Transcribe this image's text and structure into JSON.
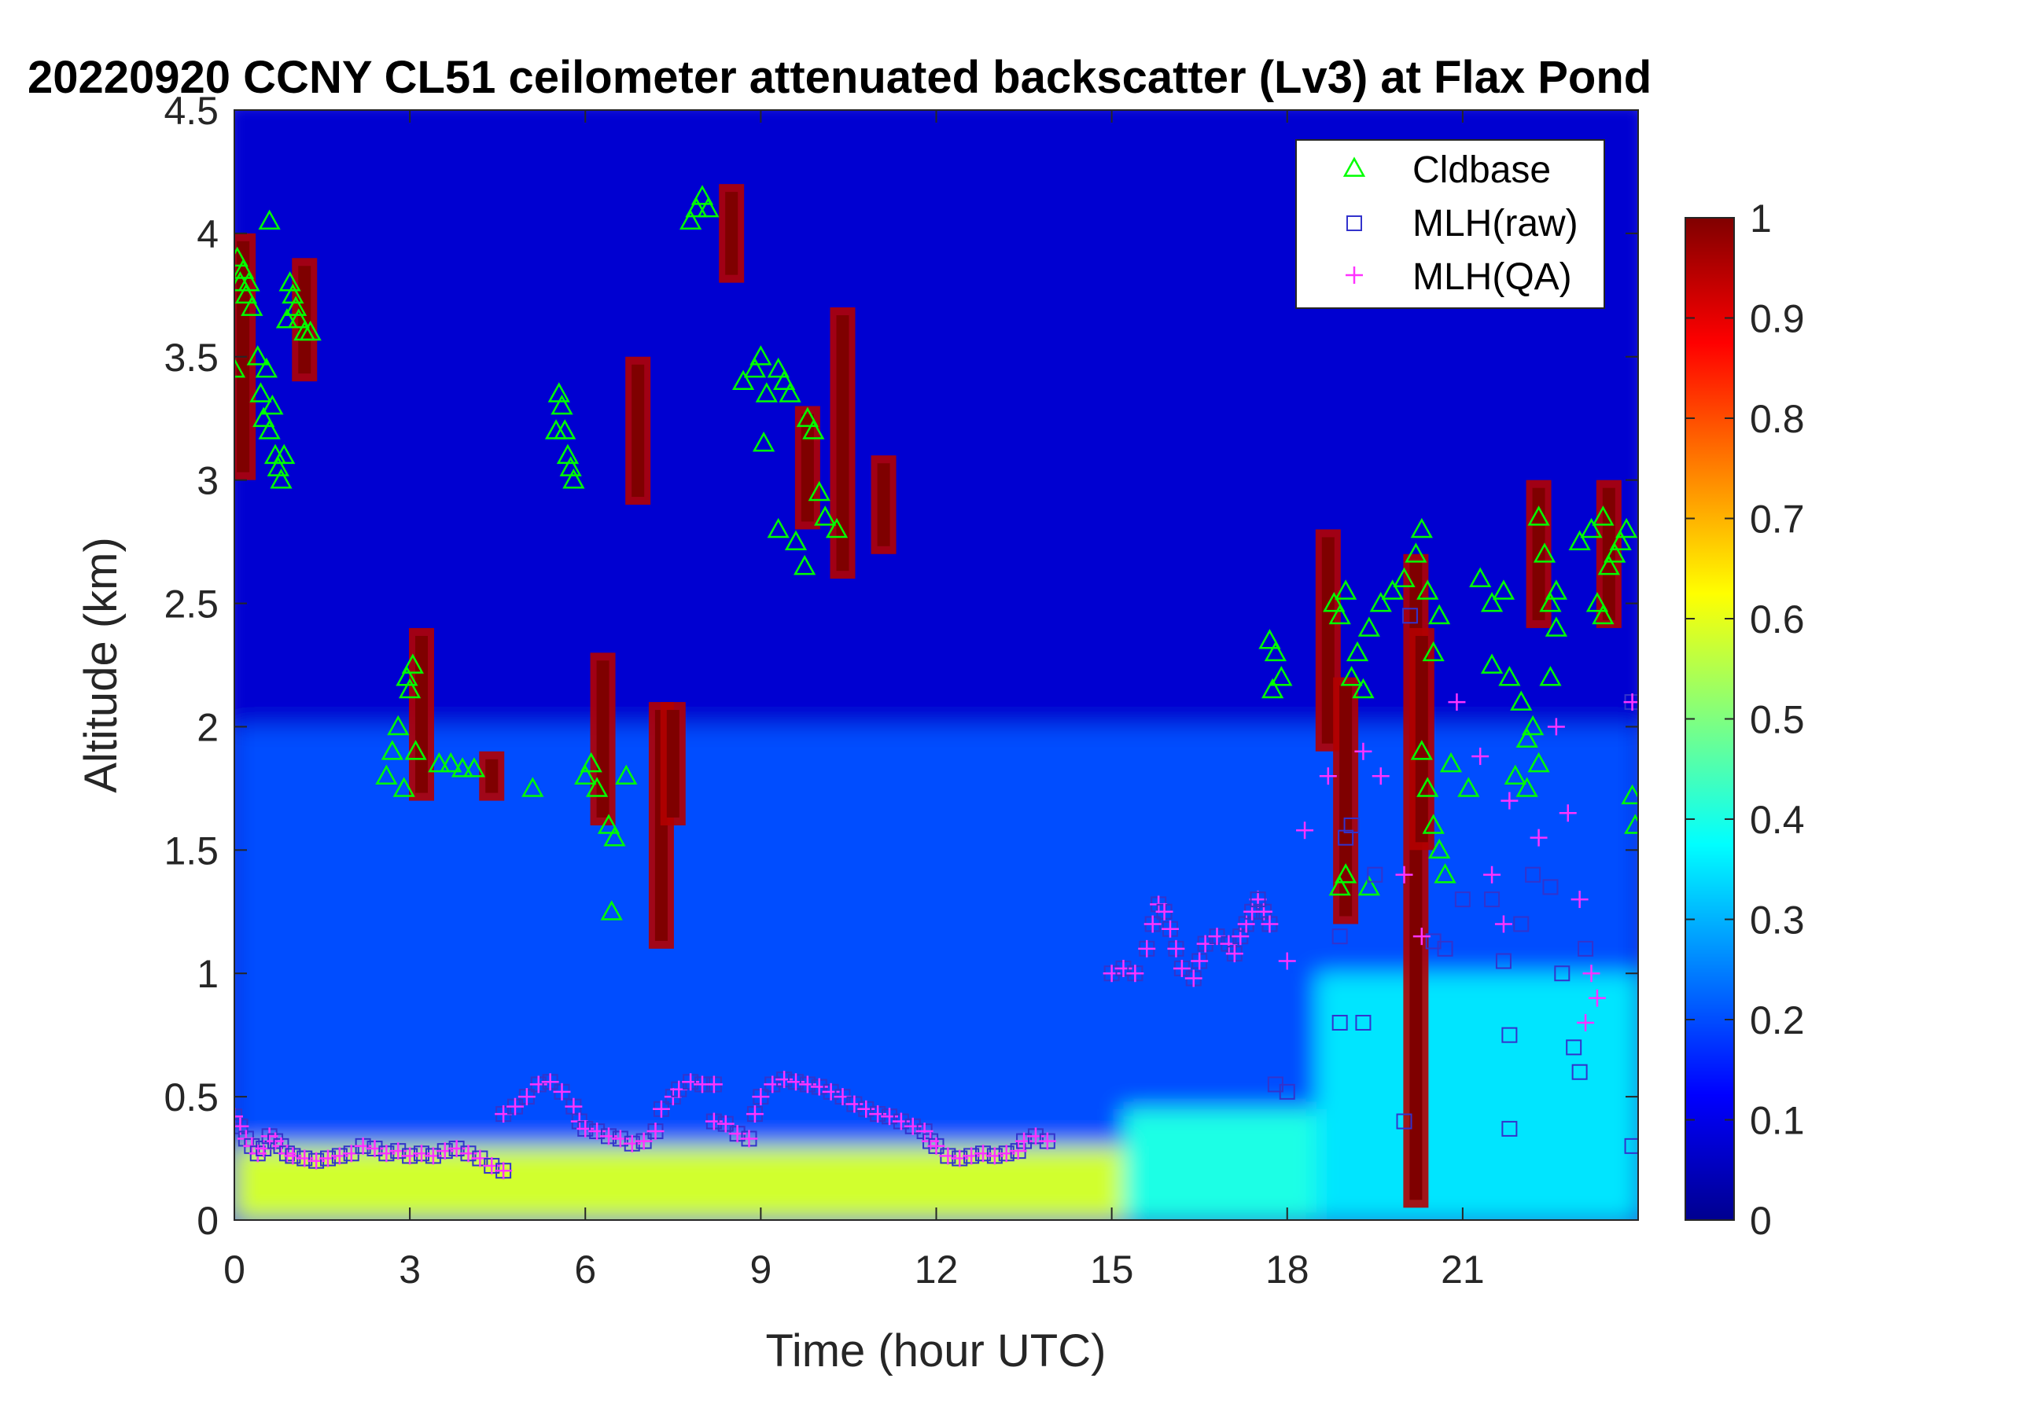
{
  "chart_data": {
    "type": "heatmap",
    "title": "20220920 CCNY CL51 ceilometer attenuated backscatter (Lv3) at Flax Pond",
    "xlabel": "Time (hour UTC)",
    "ylabel": "Altitude (km)",
    "xlim": [
      0,
      24
    ],
    "ylim": [
      0,
      4.5
    ],
    "x_ticks": [
      "0",
      "3",
      "6",
      "9",
      "12",
      "15",
      "18",
      "21"
    ],
    "x_tick_values": [
      0,
      3,
      6,
      9,
      12,
      15,
      18,
      21
    ],
    "y_ticks": [
      "0",
      "0.5",
      "1",
      "1.5",
      "2",
      "2.5",
      "3",
      "3.5",
      "4",
      "4.5"
    ],
    "y_tick_values": [
      0,
      0.5,
      1,
      1.5,
      2,
      2.5,
      3,
      3.5,
      4,
      4.5
    ],
    "colorbar": {
      "colormap": "jet",
      "range": [
        0,
        1
      ],
      "ticks": [
        "0",
        "0.1",
        "0.2",
        "0.3",
        "0.4",
        "0.5",
        "0.6",
        "0.7",
        "0.8",
        "0.9",
        "1"
      ],
      "tick_values": [
        0,
        0.1,
        0.2,
        0.3,
        0.4,
        0.5,
        0.6,
        0.7,
        0.8,
        0.9,
        1
      ]
    },
    "legend": {
      "position": "top-right",
      "entries": [
        {
          "label": "Cldbase",
          "marker": "triangle",
          "color": "#00ff00"
        },
        {
          "label": "MLH(raw)",
          "marker": "square",
          "color": "#3333cc"
        },
        {
          "label": "MLH(QA)",
          "marker": "plus",
          "color": "#ff33ff"
        }
      ]
    },
    "series": [
      {
        "name": "Cldbase",
        "points": [
          [
            0.0,
            3.45
          ],
          [
            0.05,
            3.9
          ],
          [
            0.1,
            3.8
          ],
          [
            0.15,
            3.85
          ],
          [
            0.2,
            3.75
          ],
          [
            0.25,
            3.8
          ],
          [
            0.3,
            3.7
          ],
          [
            0.4,
            3.5
          ],
          [
            0.45,
            3.35
          ],
          [
            0.5,
            3.25
          ],
          [
            0.55,
            3.45
          ],
          [
            0.6,
            3.2
          ],
          [
            0.65,
            3.3
          ],
          [
            0.7,
            3.1
          ],
          [
            0.75,
            3.05
          ],
          [
            0.8,
            3.0
          ],
          [
            0.85,
            3.1
          ],
          [
            0.6,
            4.05
          ],
          [
            0.9,
            3.65
          ],
          [
            0.95,
            3.8
          ],
          [
            1.0,
            3.75
          ],
          [
            1.05,
            3.7
          ],
          [
            1.1,
            3.65
          ],
          [
            1.2,
            3.6
          ],
          [
            1.3,
            3.6
          ],
          [
            2.6,
            1.8
          ],
          [
            2.7,
            1.9
          ],
          [
            2.8,
            2.0
          ],
          [
            2.9,
            1.75
          ],
          [
            2.95,
            2.2
          ],
          [
            3.0,
            2.15
          ],
          [
            3.05,
            2.25
          ],
          [
            3.1,
            1.9
          ],
          [
            3.5,
            1.85
          ],
          [
            3.7,
            1.85
          ],
          [
            3.9,
            1.83
          ],
          [
            4.1,
            1.83
          ],
          [
            5.1,
            1.75
          ],
          [
            6.0,
            1.8
          ],
          [
            6.1,
            1.85
          ],
          [
            6.2,
            1.75
          ],
          [
            6.4,
            1.6
          ],
          [
            6.5,
            1.55
          ],
          [
            6.45,
            1.25
          ],
          [
            6.7,
            1.8
          ],
          [
            5.5,
            3.2
          ],
          [
            5.55,
            3.35
          ],
          [
            5.6,
            3.3
          ],
          [
            5.65,
            3.2
          ],
          [
            5.7,
            3.1
          ],
          [
            5.75,
            3.05
          ],
          [
            5.8,
            3.0
          ],
          [
            7.8,
            4.05
          ],
          [
            7.9,
            4.1
          ],
          [
            8.0,
            4.15
          ],
          [
            8.1,
            4.1
          ],
          [
            8.7,
            3.4
          ],
          [
            8.9,
            3.45
          ],
          [
            9.0,
            3.5
          ],
          [
            9.1,
            3.35
          ],
          [
            9.3,
            3.45
          ],
          [
            9.4,
            3.4
          ],
          [
            9.5,
            3.35
          ],
          [
            9.05,
            3.15
          ],
          [
            9.3,
            2.8
          ],
          [
            9.6,
            2.75
          ],
          [
            9.8,
            3.25
          ],
          [
            9.9,
            3.2
          ],
          [
            10.0,
            2.95
          ],
          [
            10.1,
            2.85
          ],
          [
            9.75,
            2.65
          ],
          [
            10.3,
            2.8
          ],
          [
            17.7,
            2.35
          ],
          [
            17.8,
            2.3
          ],
          [
            17.9,
            2.2
          ],
          [
            17.75,
            2.15
          ],
          [
            18.8,
            2.5
          ],
          [
            18.9,
            2.45
          ],
          [
            19.0,
            2.55
          ],
          [
            19.1,
            2.2
          ],
          [
            19.2,
            2.3
          ],
          [
            19.3,
            2.15
          ],
          [
            19.4,
            2.4
          ],
          [
            18.9,
            1.35
          ],
          [
            19.0,
            1.4
          ],
          [
            19.4,
            1.35
          ],
          [
            19.6,
            2.5
          ],
          [
            19.8,
            2.55
          ],
          [
            20.0,
            2.6
          ],
          [
            20.2,
            2.7
          ],
          [
            20.3,
            2.8
          ],
          [
            20.4,
            2.55
          ],
          [
            20.5,
            2.3
          ],
          [
            20.6,
            2.45
          ],
          [
            20.3,
            1.9
          ],
          [
            20.4,
            1.75
          ],
          [
            20.5,
            1.6
          ],
          [
            20.6,
            1.5
          ],
          [
            20.7,
            1.4
          ],
          [
            20.8,
            1.85
          ],
          [
            21.1,
            1.75
          ],
          [
            21.3,
            2.6
          ],
          [
            21.5,
            2.5
          ],
          [
            21.7,
            2.55
          ],
          [
            21.5,
            2.25
          ],
          [
            21.8,
            2.2
          ],
          [
            22.0,
            2.1
          ],
          [
            22.1,
            1.95
          ],
          [
            22.2,
            2.0
          ],
          [
            22.3,
            2.85
          ],
          [
            22.4,
            2.7
          ],
          [
            22.5,
            2.5
          ],
          [
            22.6,
            2.4
          ],
          [
            21.9,
            1.8
          ],
          [
            22.1,
            1.75
          ],
          [
            22.3,
            1.85
          ],
          [
            22.5,
            2.2
          ],
          [
            22.6,
            2.55
          ],
          [
            23.0,
            2.75
          ],
          [
            23.2,
            2.8
          ],
          [
            23.4,
            2.85
          ],
          [
            23.5,
            2.65
          ],
          [
            23.6,
            2.7
          ],
          [
            23.7,
            2.75
          ],
          [
            23.8,
            2.8
          ],
          [
            23.3,
            2.5
          ],
          [
            23.4,
            2.45
          ],
          [
            23.9,
            1.72
          ],
          [
            23.95,
            1.6
          ]
        ]
      },
      {
        "name": "MLH(raw)",
        "points": [
          [
            18.0,
            0.52
          ],
          [
            17.8,
            0.55
          ],
          [
            18.9,
            0.8
          ],
          [
            19.3,
            0.8
          ],
          [
            18.9,
            1.15
          ],
          [
            19.0,
            1.55
          ],
          [
            19.5,
            1.4
          ],
          [
            19.1,
            1.6
          ],
          [
            20.0,
            0.4
          ],
          [
            20.5,
            1.13
          ],
          [
            20.7,
            1.1
          ],
          [
            21.0,
            1.3
          ],
          [
            21.5,
            1.3
          ],
          [
            21.7,
            1.05
          ],
          [
            21.8,
            0.75
          ],
          [
            21.8,
            0.37
          ],
          [
            22.0,
            1.2
          ],
          [
            22.2,
            1.4
          ],
          [
            22.5,
            1.35
          ],
          [
            22.7,
            1.0
          ],
          [
            22.9,
            0.7
          ],
          [
            23.0,
            0.6
          ],
          [
            23.1,
            1.1
          ],
          [
            23.9,
            0.3
          ],
          [
            23.9,
            2.1
          ],
          [
            20.1,
            2.45
          ],
          [
            17.5,
            1.3
          ]
        ]
      },
      {
        "name": "MLH(QA)",
        "points": [
          [
            18.0,
            1.05
          ],
          [
            18.3,
            1.58
          ],
          [
            18.7,
            1.8
          ],
          [
            19.3,
            1.9
          ],
          [
            19.6,
            1.8
          ],
          [
            20.0,
            1.4
          ],
          [
            20.3,
            1.15
          ],
          [
            20.9,
            2.1
          ],
          [
            21.3,
            1.88
          ],
          [
            21.5,
            1.4
          ],
          [
            21.8,
            1.7
          ],
          [
            22.3,
            1.55
          ],
          [
            22.6,
            2.0
          ],
          [
            22.8,
            1.65
          ],
          [
            23.0,
            1.3
          ],
          [
            23.2,
            1.0
          ],
          [
            23.1,
            0.8
          ],
          [
            23.3,
            0.9
          ],
          [
            23.9,
            2.1
          ],
          [
            21.7,
            1.2
          ]
        ]
      }
    ],
    "mlh_qa_trace": [
      [
        0.0,
        0.42
      ],
      [
        0.1,
        0.38
      ],
      [
        0.2,
        0.33
      ],
      [
        0.3,
        0.3
      ],
      [
        0.4,
        0.27
      ],
      [
        0.5,
        0.29
      ],
      [
        0.6,
        0.34
      ],
      [
        0.7,
        0.32
      ],
      [
        0.8,
        0.3
      ],
      [
        0.9,
        0.27
      ],
      [
        1.0,
        0.26
      ],
      [
        1.2,
        0.25
      ],
      [
        1.4,
        0.24
      ],
      [
        1.6,
        0.25
      ],
      [
        1.8,
        0.26
      ],
      [
        2.0,
        0.27
      ],
      [
        2.2,
        0.3
      ],
      [
        2.4,
        0.29
      ],
      [
        2.6,
        0.27
      ],
      [
        2.8,
        0.28
      ],
      [
        3.0,
        0.26
      ],
      [
        3.2,
        0.27
      ],
      [
        3.4,
        0.26
      ],
      [
        3.6,
        0.28
      ],
      [
        3.8,
        0.29
      ],
      [
        4.0,
        0.27
      ],
      [
        4.2,
        0.25
      ],
      [
        4.4,
        0.22
      ],
      [
        4.6,
        0.2
      ],
      [
        4.6,
        0.43
      ],
      [
        4.8,
        0.46
      ],
      [
        5.0,
        0.5
      ],
      [
        5.2,
        0.55
      ],
      [
        5.4,
        0.56
      ],
      [
        5.6,
        0.52
      ],
      [
        5.8,
        0.46
      ],
      [
        5.9,
        0.4
      ],
      [
        6.0,
        0.37
      ],
      [
        6.2,
        0.36
      ],
      [
        6.4,
        0.34
      ],
      [
        6.6,
        0.33
      ],
      [
        6.8,
        0.31
      ],
      [
        7.0,
        0.32
      ],
      [
        7.2,
        0.36
      ],
      [
        7.3,
        0.45
      ],
      [
        7.5,
        0.5
      ],
      [
        7.6,
        0.53
      ],
      [
        7.8,
        0.56
      ],
      [
        8.0,
        0.55
      ],
      [
        8.2,
        0.55
      ],
      [
        8.2,
        0.4
      ],
      [
        8.4,
        0.39
      ],
      [
        8.6,
        0.35
      ],
      [
        8.8,
        0.33
      ],
      [
        8.9,
        0.43
      ],
      [
        9.0,
        0.5
      ],
      [
        9.2,
        0.55
      ],
      [
        9.4,
        0.57
      ],
      [
        9.6,
        0.56
      ],
      [
        9.8,
        0.55
      ],
      [
        10.0,
        0.54
      ],
      [
        10.2,
        0.52
      ],
      [
        10.4,
        0.5
      ],
      [
        10.6,
        0.47
      ],
      [
        10.8,
        0.45
      ],
      [
        11.0,
        0.43
      ],
      [
        11.2,
        0.42
      ],
      [
        11.4,
        0.4
      ],
      [
        11.6,
        0.38
      ],
      [
        11.8,
        0.36
      ],
      [
        11.9,
        0.32
      ],
      [
        12.0,
        0.3
      ],
      [
        12.2,
        0.26
      ],
      [
        12.4,
        0.25
      ],
      [
        12.6,
        0.26
      ],
      [
        12.8,
        0.27
      ],
      [
        13.0,
        0.26
      ],
      [
        13.2,
        0.27
      ],
      [
        13.4,
        0.28
      ],
      [
        13.5,
        0.32
      ],
      [
        13.7,
        0.34
      ],
      [
        13.9,
        0.32
      ],
      [
        15.0,
        1.0
      ],
      [
        15.2,
        1.02
      ],
      [
        15.4,
        1.0
      ],
      [
        15.6,
        1.1
      ],
      [
        15.7,
        1.2
      ],
      [
        15.8,
        1.28
      ],
      [
        15.9,
        1.25
      ],
      [
        16.0,
        1.18
      ],
      [
        16.1,
        1.1
      ],
      [
        16.2,
        1.02
      ],
      [
        16.4,
        0.98
      ],
      [
        16.5,
        1.05
      ],
      [
        16.6,
        1.12
      ],
      [
        16.8,
        1.15
      ],
      [
        17.0,
        1.12
      ],
      [
        17.1,
        1.08
      ],
      [
        17.2,
        1.15
      ],
      [
        17.3,
        1.2
      ],
      [
        17.4,
        1.25
      ],
      [
        17.5,
        1.3
      ],
      [
        17.6,
        1.25
      ],
      [
        17.7,
        1.2
      ]
    ],
    "backscatter_fields": [
      {
        "t0": 0,
        "t1": 15.2,
        "z0": 0,
        "z1": 0.3,
        "value": 0.58
      },
      {
        "t0": 15.2,
        "t1": 18.5,
        "z0": 0,
        "z1": 0.45,
        "value": 0.4
      },
      {
        "t0": 18.5,
        "t1": 24,
        "z0": 0,
        "z1": 1.0,
        "value": 0.35
      },
      {
        "t0": 0,
        "t1": 24,
        "z0": 0.3,
        "z1": 2.0,
        "value": 0.2
      },
      {
        "t0": 0,
        "t1": 24,
        "z0": 2.0,
        "z1": 4.5,
        "value": 0.08
      }
    ],
    "cloud_cores": [
      [
        0.15,
        3.0,
        4.0
      ],
      [
        1.2,
        3.4,
        3.9
      ],
      [
        3.2,
        1.7,
        2.4
      ],
      [
        4.4,
        1.7,
        1.9
      ],
      [
        6.3,
        1.6,
        2.3
      ],
      [
        6.9,
        2.9,
        3.5
      ],
      [
        7.3,
        1.1,
        2.1
      ],
      [
        7.5,
        1.6,
        2.1
      ],
      [
        8.5,
        3.8,
        4.2
      ],
      [
        9.8,
        2.8,
        3.3
      ],
      [
        10.4,
        2.6,
        3.7
      ],
      [
        11.1,
        2.7,
        3.1
      ],
      [
        18.7,
        1.9,
        2.8
      ],
      [
        19.0,
        1.2,
        2.2
      ],
      [
        20.2,
        0.05,
        2.7
      ],
      [
        20.3,
        1.5,
        2.4
      ],
      [
        22.3,
        2.4,
        3.0
      ],
      [
        23.5,
        2.4,
        3.0
      ]
    ]
  }
}
